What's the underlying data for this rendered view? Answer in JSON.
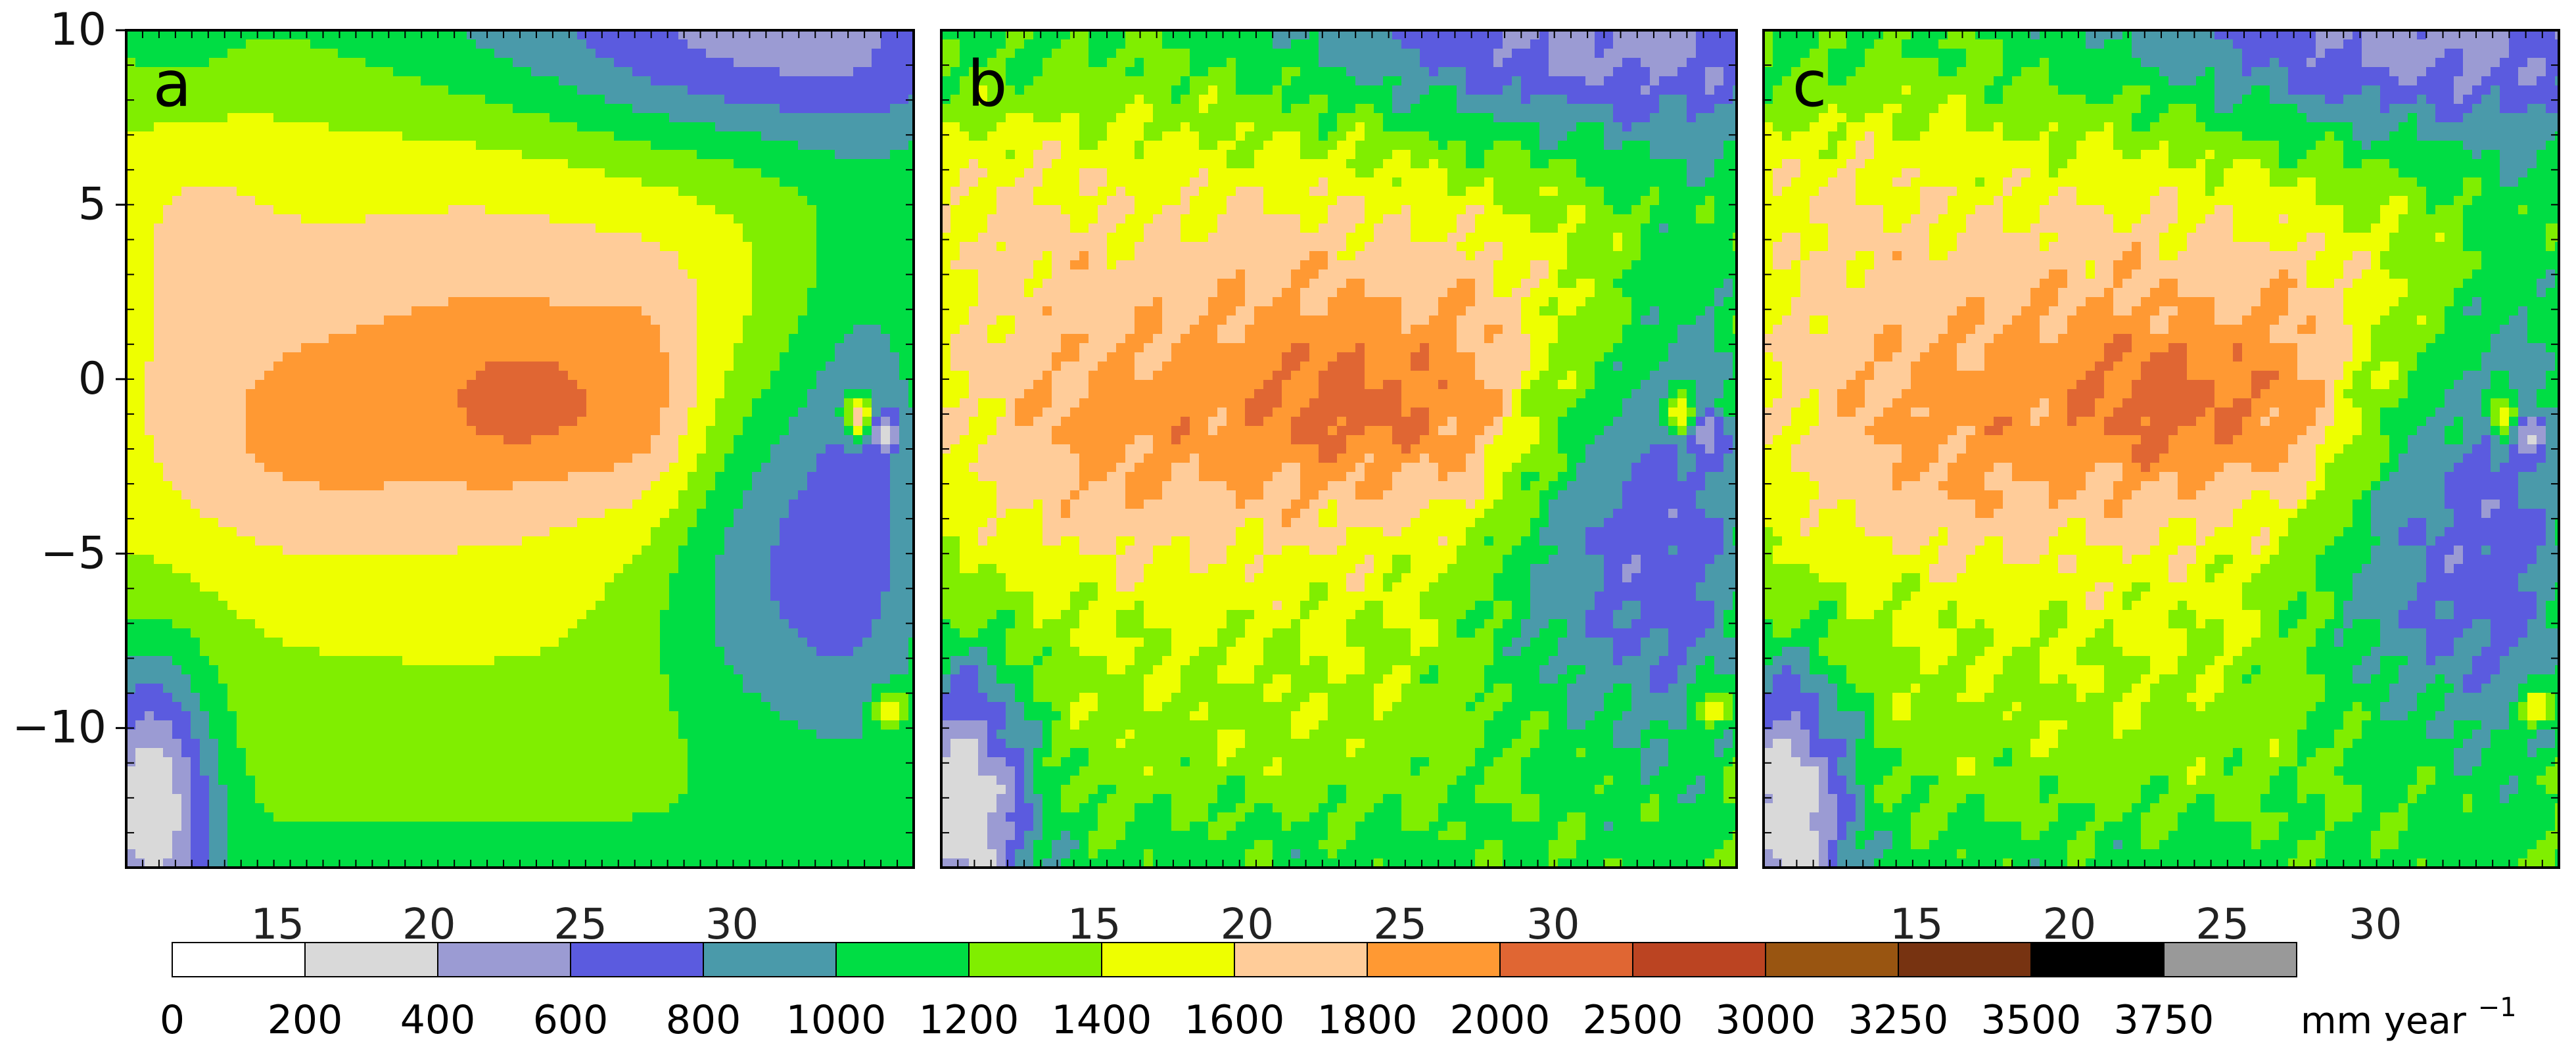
{
  "chart_data": {
    "type": "heatmap",
    "title": "",
    "xlabel": "",
    "ylabel": "",
    "xlim": [
      10,
      36
    ],
    "ylim": [
      -14,
      10
    ],
    "grid": false,
    "yticks": [
      {
        "value": 10,
        "label": "10"
      },
      {
        "value": 5,
        "label": "5"
      },
      {
        "value": 0,
        "label": "0"
      },
      {
        "value": -5,
        "label": "−5"
      },
      {
        "value": -10,
        "label": "−10"
      }
    ],
    "xticks": [
      {
        "value": 15,
        "label": "15"
      },
      {
        "value": 20,
        "label": "20"
      },
      {
        "value": 25,
        "label": "25"
      },
      {
        "value": 30,
        "label": "30"
      }
    ],
    "panels": [
      {
        "label": "a"
      },
      {
        "label": "b"
      },
      {
        "label": "c"
      }
    ],
    "colorbar": {
      "unit": "mm year",
      "unit_exponent": "−1",
      "boundaries": [
        "0",
        "200",
        "400",
        "600",
        "800",
        "1000",
        "1200",
        "1400",
        "1600",
        "1800",
        "2000",
        "2500",
        "3000",
        "3250",
        "3500",
        "3750"
      ],
      "colors": [
        "#ffffff",
        "#d9d9d9",
        "#9b9bd3",
        "#5b5bdf",
        "#4a9aaa",
        "#00dd44",
        "#80ee00",
        "#eeff00",
        "#ffcc99",
        "#ff9933",
        "#e06633",
        "#bb4422",
        "#995511",
        "#773311",
        "#000000",
        "#999999"
      ]
    },
    "precip_field": [
      {
        "lon": 33.0,
        "lat": -11.0,
        "value": 1100
      },
      {
        "lon": 32.5,
        "lat": 9.0,
        "value": 800
      },
      {
        "lon": 27.0,
        "lat": 1.0,
        "value": 2000
      },
      {
        "lon": 23.0,
        "lat": -0.5,
        "value": 2200
      },
      {
        "lon": 11.5,
        "lat": -10.0,
        "value": 400
      },
      {
        "lon": 34.5,
        "lat": -1.0,
        "value": 700
      }
    ]
  }
}
